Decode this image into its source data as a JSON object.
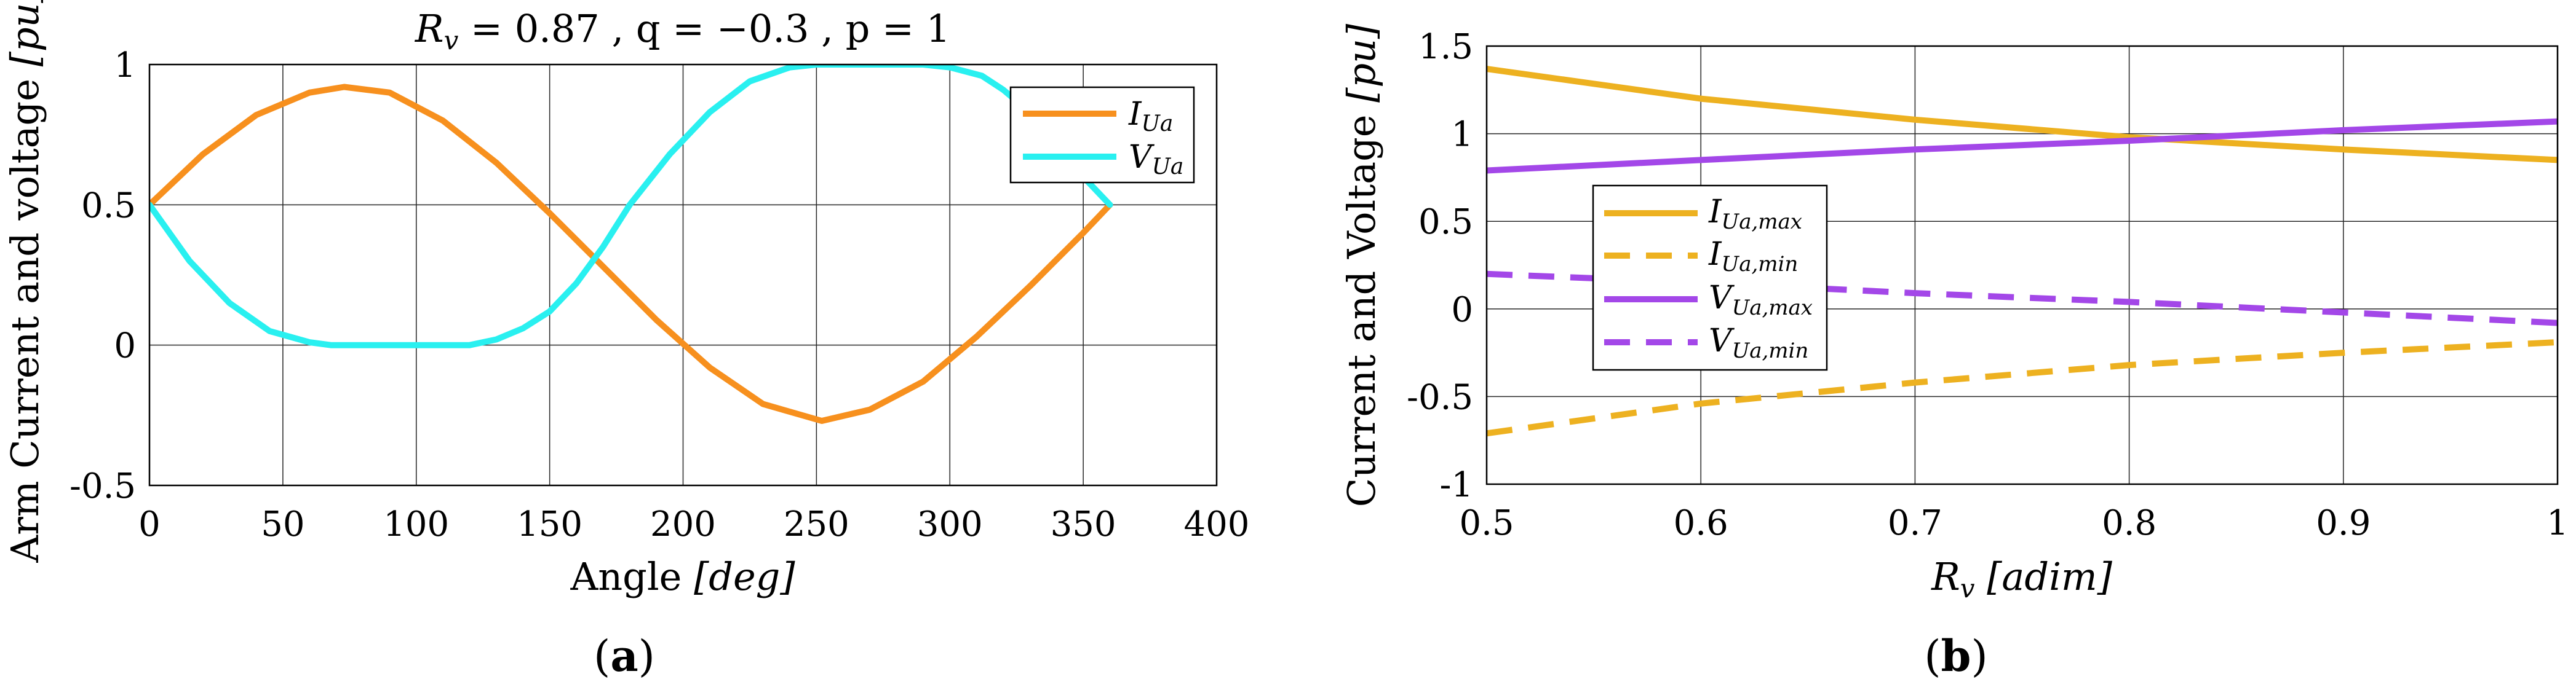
{
  "chart_data": [
    {
      "panel": "a",
      "type": "line",
      "caption_letter": "a",
      "title": {
        "lhs": "R",
        "sub": "v",
        "rest": " = 0.87 ,  q = −0.3 ,  p = 1"
      },
      "xlabel": {
        "text": "Angle ",
        "unit": "[deg]"
      },
      "ylabel": {
        "text": "Arm Current and voltage ",
        "unit": "[pu]"
      },
      "xlim": [
        0,
        400
      ],
      "ylim": [
        -0.5,
        1
      ],
      "xticks": [
        0,
        50,
        100,
        150,
        200,
        250,
        300,
        350,
        400
      ],
      "yticks": [
        -0.5,
        0,
        0.5,
        1
      ],
      "xtick_labels": [
        "0",
        "50",
        "100",
        "150",
        "200",
        "250",
        "300",
        "350",
        "400"
      ],
      "ytick_labels": [
        "-0.5",
        "0",
        "0.5",
        "1"
      ],
      "grid": true,
      "legend_position": "top-right",
      "series": [
        {
          "name": "I",
          "sub": "Ua",
          "color": "#f7901e",
          "dash": "solid",
          "x": [
            0,
            20,
            40,
            60,
            73,
            90,
            110,
            130,
            150,
            170,
            190,
            210,
            230,
            252,
            270,
            290,
            310,
            330,
            350,
            360
          ],
          "y": [
            0.5,
            0.68,
            0.82,
            0.9,
            0.92,
            0.9,
            0.8,
            0.65,
            0.47,
            0.28,
            0.09,
            -0.08,
            -0.21,
            -0.27,
            -0.23,
            -0.13,
            0.03,
            0.21,
            0.4,
            0.5
          ]
        },
        {
          "name": "V",
          "sub": "Ua",
          "color": "#29f0f0",
          "dash": "solid",
          "x": [
            0,
            15,
            30,
            45,
            60,
            68,
            80,
            100,
            120,
            130,
            140,
            150,
            160,
            170,
            180,
            195,
            210,
            225,
            240,
            250,
            270,
            290,
            300,
            312,
            320,
            330,
            340,
            350,
            360
          ],
          "y": [
            0.5,
            0.3,
            0.15,
            0.05,
            0.01,
            0,
            0,
            0,
            0,
            0.02,
            0.06,
            0.12,
            0.22,
            0.35,
            0.5,
            0.68,
            0.83,
            0.94,
            0.99,
            1.0,
            1.0,
            1.0,
            0.99,
            0.96,
            0.91,
            0.83,
            0.72,
            0.6,
            0.5
          ]
        }
      ]
    },
    {
      "panel": "b",
      "type": "line",
      "caption_letter": "b",
      "title": "",
      "xlabel": {
        "lhs": "R",
        "sub": "v",
        "unit": " [adim]"
      },
      "ylabel": {
        "text": "Current and Voltage ",
        "unit": "[pu]"
      },
      "xlim": [
        0.5,
        1
      ],
      "ylim": [
        -1,
        1.5
      ],
      "xticks": [
        0.5,
        0.6,
        0.7,
        0.8,
        0.9,
        1
      ],
      "yticks": [
        -1,
        -0.5,
        0,
        0.5,
        1,
        1.5
      ],
      "xtick_labels": [
        "0.5",
        "0.6",
        "0.7",
        "0.8",
        "0.9",
        "1"
      ],
      "ytick_labels": [
        "-1",
        "-0.5",
        "0",
        "0.5",
        "1",
        "1.5"
      ],
      "grid": true,
      "legend_position": "center-left",
      "series": [
        {
          "name": "I",
          "sub": "Ua,max",
          "color": "#edb120",
          "dash": "solid",
          "x": [
            0.5,
            0.6,
            0.7,
            0.8,
            0.9,
            1.0
          ],
          "y": [
            1.37,
            1.2,
            1.08,
            0.98,
            0.91,
            0.85
          ]
        },
        {
          "name": "I",
          "sub": "Ua,min",
          "color": "#edb120",
          "dash": "dashed",
          "x": [
            0.5,
            0.6,
            0.7,
            0.8,
            0.9,
            1.0
          ],
          "y": [
            -0.71,
            -0.54,
            -0.42,
            -0.32,
            -0.25,
            -0.19
          ]
        },
        {
          "name": "V",
          "sub": "Ua,max",
          "color": "#a347e8",
          "dash": "solid",
          "x": [
            0.5,
            0.6,
            0.7,
            0.8,
            0.9,
            1.0
          ],
          "y": [
            0.79,
            0.85,
            0.91,
            0.96,
            1.02,
            1.07
          ]
        },
        {
          "name": "V",
          "sub": "Ua,min",
          "color": "#a347e8",
          "dash": "dashed",
          "x": [
            0.5,
            0.6,
            0.7,
            0.8,
            0.9,
            1.0
          ],
          "y": [
            0.2,
            0.15,
            0.09,
            0.04,
            -0.02,
            -0.08
          ]
        }
      ]
    }
  ]
}
